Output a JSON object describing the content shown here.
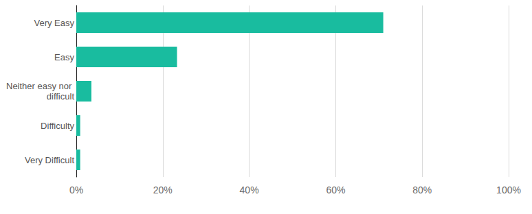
{
  "chart_data": {
    "type": "bar",
    "orientation": "horizontal",
    "categories": [
      "Very Easy",
      "Easy",
      "Neither easy nor difficult",
      "Difficulty",
      "Very Difficult"
    ],
    "values": [
      71,
      23.3,
      3.5,
      0.9,
      0.9
    ],
    "color": "#19bc9f",
    "xlim": [
      0,
      100
    ],
    "xticks": [
      {
        "value": 0,
        "label": "0%"
      },
      {
        "value": 20,
        "label": "20%"
      },
      {
        "value": 40,
        "label": "40%"
      },
      {
        "value": 60,
        "label": "60%"
      },
      {
        "value": 80,
        "label": "80%"
      },
      {
        "value": 100,
        "label": "100%"
      }
    ],
    "grid": true
  }
}
